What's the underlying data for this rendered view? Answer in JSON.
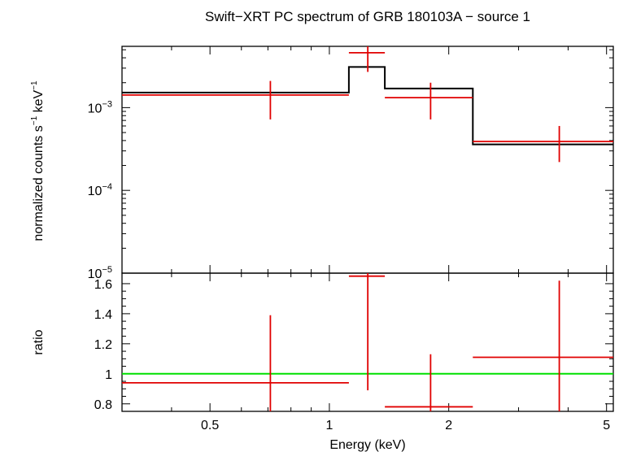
{
  "chart_data": {
    "title": "Swift−XRT PC spectrum of GRB 180103A − source 1",
    "xlabel": "Energy (keV)",
    "x_scale": "log",
    "x_range": [
      0.3,
      5.2
    ],
    "x_ticks": [
      {
        "value": 0.5,
        "label": "0.5"
      },
      {
        "value": 1,
        "label": "1"
      },
      {
        "value": 2,
        "label": "2"
      },
      {
        "value": 5,
        "label": "5"
      }
    ],
    "top_panel": {
      "type": "spectrum",
      "ylabel_main": "normalized counts s",
      "ylabel_sup1": "−1",
      "ylabel_mid": " keV",
      "ylabel_sup2": "−1",
      "y_scale": "log",
      "y_range": [
        1e-05,
        0.0055
      ],
      "y_ticks": [
        {
          "value": 0.001,
          "base": "10",
          "exp": "−3"
        },
        {
          "value": 0.0001,
          "base": "10",
          "exp": "−4"
        },
        {
          "value": 1e-05,
          "base": "10",
          "exp": "−5"
        }
      ],
      "data": [
        {
          "x_lo": 0.3,
          "x_hi": 1.12,
          "x": 0.71,
          "y": 0.00142,
          "y_lo": 0.00072,
          "y_hi": 0.0021
        },
        {
          "x_lo": 1.12,
          "x_hi": 1.38,
          "x": 1.25,
          "y": 0.0046,
          "y_lo": 0.0027,
          "y_hi": 0.0062
        },
        {
          "x_lo": 1.38,
          "x_hi": 2.3,
          "x": 1.8,
          "y": 0.00132,
          "y_lo": 0.00072,
          "y_hi": 0.002
        },
        {
          "x_lo": 2.3,
          "x_hi": 5.2,
          "x": 3.8,
          "y": 0.00039,
          "y_lo": 0.00022,
          "y_hi": 0.0006
        }
      ],
      "model": [
        {
          "x_lo": 0.3,
          "x_hi": 1.12,
          "y": 0.00152
        },
        {
          "x_lo": 1.12,
          "x_hi": 1.38,
          "y": 0.0031
        },
        {
          "x_lo": 1.38,
          "x_hi": 2.3,
          "y": 0.0017
        },
        {
          "x_lo": 2.3,
          "x_hi": 5.2,
          "y": 0.00036
        }
      ]
    },
    "bottom_panel": {
      "type": "ratio",
      "ylabel": "ratio",
      "y_scale": "linear",
      "y_range": [
        0.75,
        1.67
      ],
      "y_ticks": [
        {
          "value": 0.8,
          "label": "0.8"
        },
        {
          "value": 1,
          "label": "1"
        },
        {
          "value": 1.2,
          "label": "1.2"
        },
        {
          "value": 1.4,
          "label": "1.4"
        },
        {
          "value": 1.6,
          "label": "1.6"
        }
      ],
      "unity": 1,
      "data": [
        {
          "x_lo": 0.3,
          "x_hi": 1.12,
          "x": 0.71,
          "y": 0.94,
          "y_lo": 0.47,
          "y_hi": 1.39
        },
        {
          "x_lo": 1.12,
          "x_hi": 1.38,
          "x": 1.25,
          "y": 1.65,
          "y_lo": 0.89,
          "y_hi": 1.67
        },
        {
          "x_lo": 1.38,
          "x_hi": 2.3,
          "x": 1.8,
          "y": 0.78,
          "y_lo": 0.42,
          "y_hi": 1.13
        },
        {
          "x_lo": 2.3,
          "x_hi": 5.2,
          "x": 3.8,
          "y": 1.11,
          "y_lo": 0.58,
          "y_hi": 1.62
        }
      ]
    }
  }
}
